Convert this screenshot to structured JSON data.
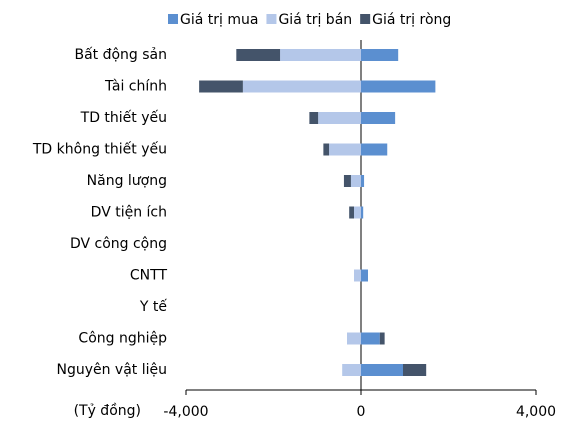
{
  "chart_data": {
    "type": "diverging-stacked-bar",
    "categories": [
      "Bất động sản",
      "Tài chính",
      "TD thiết yếu",
      "TD không thiết yếu",
      "Năng lượng",
      "DV tiện ích",
      "DV công cộng",
      "CNTT",
      "Y tế",
      "Công nghiệp",
      "Nguyên vật liệu"
    ],
    "series": [
      {
        "name": "Giá trị mua",
        "color": "#5b8fd0",
        "values": [
          850,
          1700,
          780,
          600,
          70,
          50,
          0,
          160,
          0,
          430,
          960
        ]
      },
      {
        "name": "Giá trị bán",
        "color": "#b4c7e9",
        "values": [
          -1850,
          -2700,
          -980,
          -730,
          -230,
          -160,
          0,
          -160,
          0,
          -320,
          -430
        ]
      },
      {
        "name": "Giá trị ròng",
        "color": "#44546a",
        "values": [
          -1000,
          -1000,
          -200,
          -130,
          -160,
          -110,
          0,
          0,
          0,
          110,
          530
        ]
      }
    ],
    "x_label": "(Tỷ đồng)",
    "xlim": [
      -4000,
      4000
    ],
    "xticks": [
      {
        "value": -4000,
        "label": "-4,000"
      },
      0,
      {
        "value": 4000,
        "label": "4,000"
      }
    ]
  }
}
